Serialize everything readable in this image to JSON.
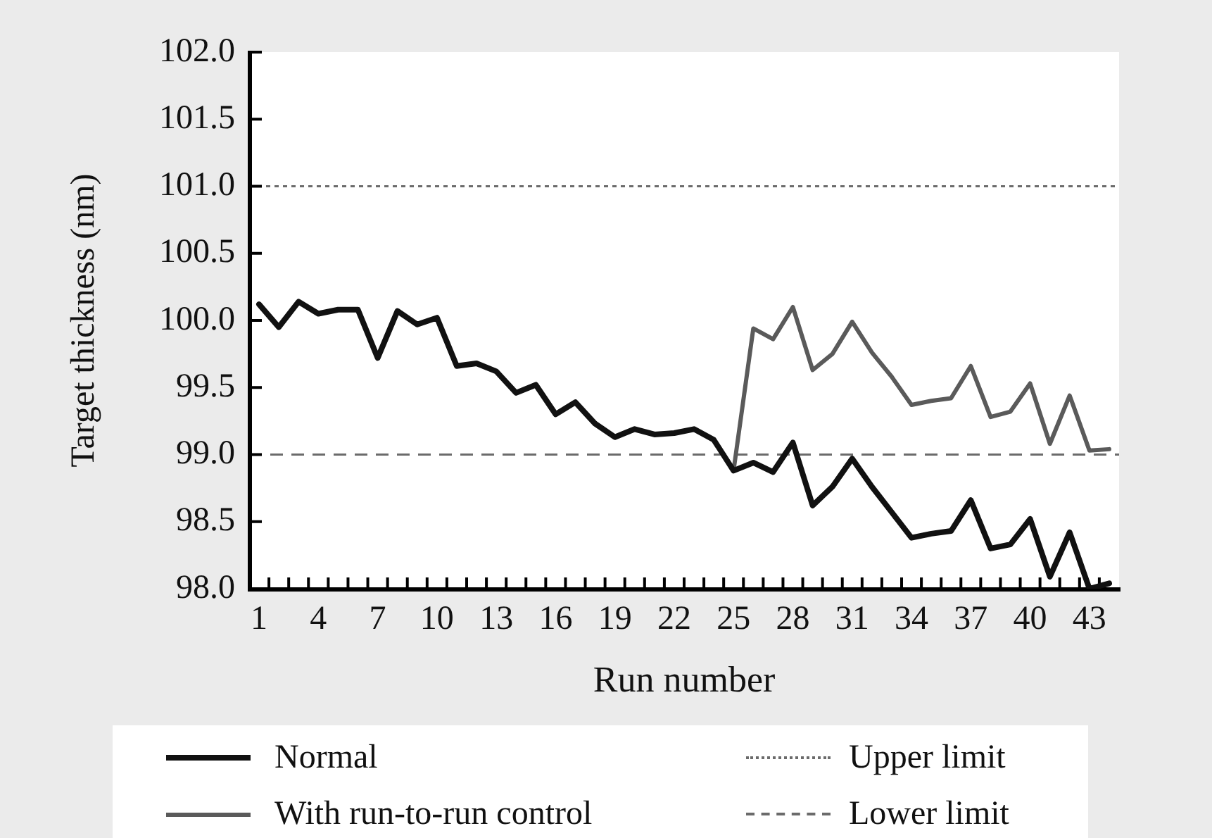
{
  "chart_data": {
    "type": "line",
    "xlabel": "Run number",
    "ylabel": "Target thickness (nm)",
    "categories": [
      "1",
      null,
      null,
      "4",
      null,
      null,
      "7",
      null,
      null,
      "10",
      null,
      null,
      "13",
      null,
      null,
      "16",
      null,
      null,
      "19",
      null,
      null,
      "22",
      null,
      null,
      "25",
      null,
      null,
      "28",
      null,
      null,
      "31",
      null,
      null,
      "34",
      null,
      null,
      "37",
      null,
      null,
      "40",
      null,
      null,
      "43",
      null
    ],
    "series": [
      {
        "name": "Normal",
        "color": "#111111",
        "values": [
          100.12,
          99.95,
          100.14,
          100.05,
          100.08,
          100.08,
          99.72,
          100.07,
          99.97,
          100.02,
          99.66,
          99.68,
          99.62,
          99.46,
          99.52,
          99.3,
          99.39,
          99.23,
          99.13,
          99.19,
          99.15,
          99.16,
          99.19,
          99.11,
          98.88,
          98.94,
          98.87,
          99.09,
          98.62,
          98.76,
          98.97,
          98.76,
          98.57,
          98.38,
          98.41,
          98.43,
          98.66,
          98.3,
          98.33,
          98.52,
          98.09,
          98.42,
          98.0,
          98.04
        ]
      },
      {
        "name": "With run-to-run control",
        "color": "#5a5a5a",
        "values": [
          null,
          null,
          null,
          null,
          null,
          null,
          null,
          null,
          null,
          null,
          null,
          null,
          null,
          null,
          null,
          null,
          null,
          null,
          null,
          null,
          null,
          null,
          null,
          null,
          98.88,
          99.94,
          99.86,
          100.1,
          99.63,
          99.75,
          99.99,
          99.76,
          99.58,
          99.37,
          99.4,
          99.42,
          99.66,
          99.28,
          99.32,
          99.53,
          99.08,
          99.44,
          99.03,
          99.04
        ]
      }
    ],
    "ylim": [
      98,
      102
    ],
    "yticks": [
      {
        "value": 98,
        "label": "98.0"
      },
      {
        "value": 98.5,
        "label": "98.5"
      },
      {
        "value": 99,
        "label": "99.0"
      },
      {
        "value": 99.5,
        "label": "99.5"
      },
      {
        "value": 100,
        "label": "100.0"
      },
      {
        "value": 100.5,
        "label": "100.5"
      },
      {
        "value": 101,
        "label": "101.0"
      },
      {
        "value": 101.5,
        "label": "101.5"
      },
      {
        "value": 102,
        "label": "102.0"
      }
    ],
    "ref_lines": [
      {
        "axis": "y",
        "value": 101,
        "label": "Upper limit",
        "line_style": "dotted",
        "color": "#6b6b6b"
      },
      {
        "axis": "y",
        "value": 99,
        "label": "Lower limit",
        "line_style": "dashed",
        "color": "#6b6b6b"
      }
    ],
    "legend": "bottom"
  }
}
